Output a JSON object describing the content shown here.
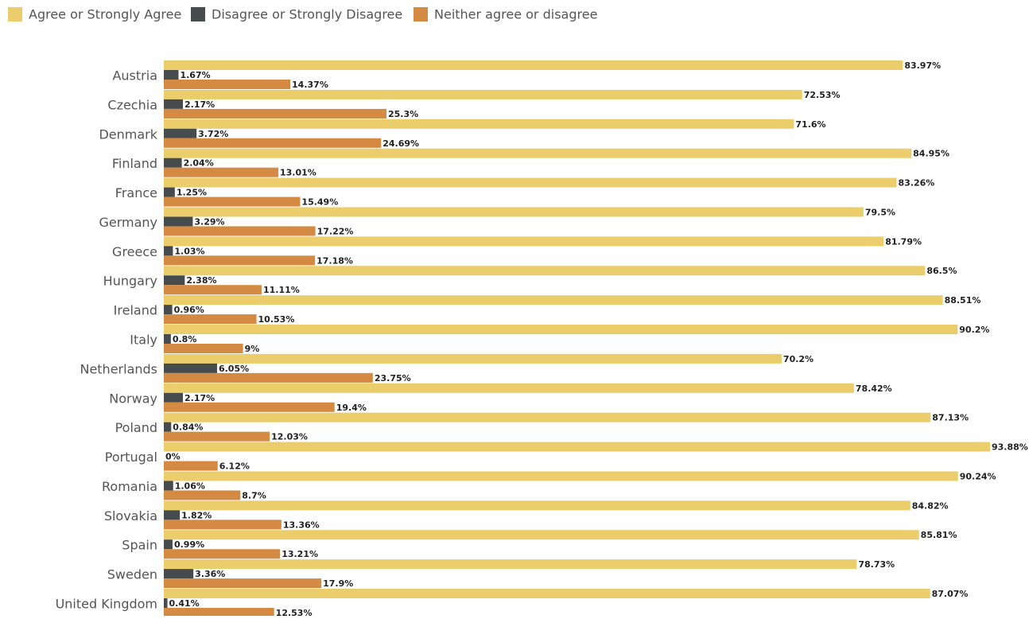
{
  "chart_data": {
    "type": "hbar",
    "categories": [
      "Austria",
      "Czechia",
      "Denmark",
      "Finland",
      "France",
      "Germany",
      "Greece",
      "Hungary",
      "Ireland",
      "Italy",
      "Netherlands",
      "Norway",
      "Poland",
      "Portugal",
      "Romania",
      "Slovakia",
      "Spain",
      "Sweden",
      "United Kingdom"
    ],
    "series": [
      {
        "name": "Agree or Strongly Agree",
        "color": "#ebcd6b",
        "values": [
          83.97,
          72.53,
          71.6,
          84.95,
          83.26,
          79.5,
          81.79,
          86.5,
          88.51,
          90.2,
          70.2,
          78.42,
          87.13,
          93.88,
          90.24,
          84.82,
          85.81,
          78.73,
          87.07
        ],
        "value_labels": [
          "83.97%",
          "72.53%",
          "71.6%",
          "84.95%",
          "83.26%",
          "79.5%",
          "81.79%",
          "86.5%",
          "88.51%",
          "90.2%",
          "70.2%",
          "78.42%",
          "87.13%",
          "93.88%",
          "90.24%",
          "84.82%",
          "85.81%",
          "78.73%",
          "87.07%"
        ]
      },
      {
        "name": "Disagree or Strongly Disagree",
        "color": "#464b4e",
        "values": [
          1.67,
          2.17,
          3.72,
          2.04,
          1.25,
          3.29,
          1.03,
          2.38,
          0.96,
          0.8,
          6.05,
          2.17,
          0.84,
          0,
          1.06,
          1.82,
          0.99,
          3.36,
          0.41
        ],
        "value_labels": [
          "1.67%",
          "2.17%",
          "3.72%",
          "2.04%",
          "1.25%",
          "3.29%",
          "1.03%",
          "2.38%",
          "0.96%",
          "0.8%",
          "6.05%",
          "2.17%",
          "0.84%",
          "0%",
          "1.06%",
          "1.82%",
          "0.99%",
          "3.36%",
          "0.41%"
        ]
      },
      {
        "name": "Neither agree or disagree",
        "color": "#d48a42",
        "values": [
          14.37,
          25.3,
          24.69,
          13.01,
          15.49,
          17.22,
          17.18,
          11.11,
          10.53,
          9,
          23.75,
          19.4,
          12.03,
          6.12,
          8.7,
          13.36,
          13.21,
          17.9,
          12.53
        ],
        "value_labels": [
          "14.37%",
          "25.3%",
          "24.69%",
          "13.01%",
          "15.49%",
          "17.22%",
          "17.18%",
          "11.11%",
          "10.53%",
          "9%",
          "23.75%",
          "19.4%",
          "12.03%",
          "6.12%",
          "8.7%",
          "13.36%",
          "13.21%",
          "17.9%",
          "12.53%"
        ]
      }
    ]
  }
}
